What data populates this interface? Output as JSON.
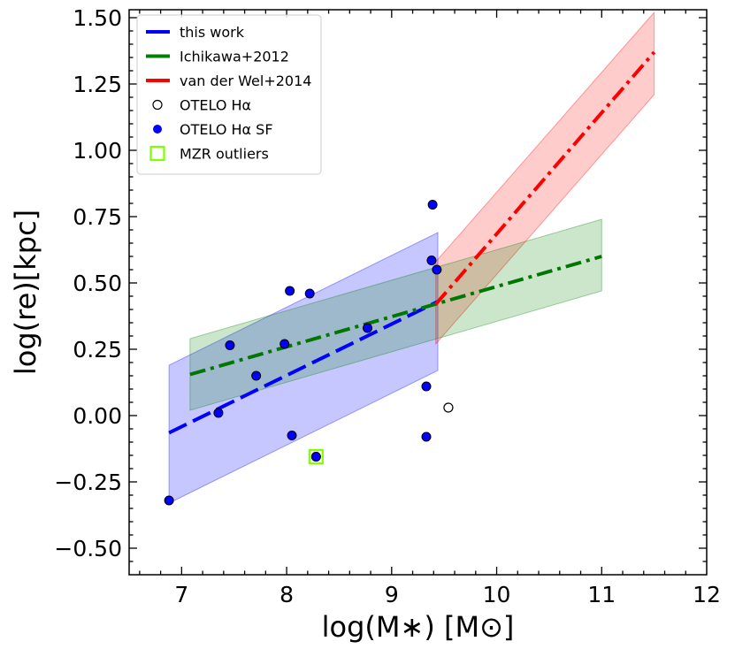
{
  "chart_data": {
    "type": "scatter",
    "title": "",
    "xlabel": "log(M∗) [M⊙]",
    "ylabel": "log(re)[kpc]",
    "xlim": [
      6.5,
      12
    ],
    "ylim": [
      -0.6,
      1.53
    ],
    "x_ticks": [
      7,
      8,
      9,
      10,
      11,
      12
    ],
    "x_tick_labels": [
      "7",
      "8",
      "9",
      "10",
      "11",
      "12"
    ],
    "y_ticks": [
      -0.5,
      -0.25,
      0,
      0.25,
      0.5,
      0.75,
      1.0,
      1.25,
      1.5
    ],
    "y_tick_labels": [
      "−0.50",
      "−0.25",
      "0.00",
      "0.25",
      "0.50",
      "0.75",
      "1.00",
      "1.25",
      "1.50"
    ],
    "grid": false,
    "legend_position": "top-left",
    "bands": [
      {
        "name": "this work band",
        "color": "#0000ff",
        "opacity": 0.22,
        "x": [
          6.88,
          9.44
        ],
        "lower": [
          -0.33,
          0.17
        ],
        "upper": [
          0.19,
          0.69
        ]
      },
      {
        "name": "van der Wel+2014 band",
        "color": "#ff0000",
        "opacity": 0.2,
        "x": [
          9.42,
          11.5
        ],
        "lower": [
          0.27,
          1.21
        ],
        "upper": [
          0.58,
          1.52
        ]
      },
      {
        "name": "Ichikawa+2012 band",
        "color": "#008000",
        "opacity": 0.2,
        "x": [
          7.08,
          11.0
        ],
        "lower": [
          0.02,
          0.47
        ],
        "upper": [
          0.29,
          0.74
        ]
      }
    ],
    "series": [
      {
        "name": "this work",
        "type": "line",
        "style": "longdash",
        "color": "#0000ff",
        "x": [
          6.88,
          9.44
        ],
        "y": [
          -0.065,
          0.43
        ]
      },
      {
        "name": "Ichikawa+2012",
        "type": "line",
        "style": "dashdot",
        "color": "#007700",
        "x": [
          7.08,
          11.0
        ],
        "y": [
          0.155,
          0.6
        ]
      },
      {
        "name": "van der Wel+2014",
        "type": "line",
        "style": "dashdot",
        "color": "#ff0000",
        "x": [
          9.42,
          11.5
        ],
        "y": [
          0.42,
          1.37
        ]
      },
      {
        "name": "OTELO Hα",
        "type": "scatter",
        "marker": "open-circle",
        "color": "#000000",
        "x": [
          9.54
        ],
        "y": [
          0.03
        ]
      },
      {
        "name": "OTELO Hα SF",
        "type": "scatter",
        "marker": "filled-circle",
        "color": "#0000ff",
        "x": [
          6.88,
          7.35,
          7.46,
          7.71,
          7.98,
          8.03,
          8.05,
          8.22,
          8.28,
          8.77,
          9.33,
          9.33,
          9.38,
          9.39,
          9.43
        ],
        "y": [
          -0.32,
          0.01,
          0.265,
          0.15,
          0.27,
          0.47,
          -0.075,
          0.46,
          -0.155,
          0.33,
          -0.08,
          0.11,
          0.585,
          0.795,
          0.55
        ]
      },
      {
        "name": "MZR outliers",
        "type": "scatter",
        "marker": "open-square",
        "color": "#7fff00",
        "x": [
          8.28
        ],
        "y": [
          -0.155
        ]
      }
    ],
    "legend": [
      {
        "label": "this work",
        "kind": "line",
        "color": "#0000ff"
      },
      {
        "label": "Ichikawa+2012",
        "kind": "line",
        "color": "#008000"
      },
      {
        "label": "van der Wel+2014",
        "kind": "line",
        "color": "#ff0000"
      },
      {
        "label": "OTELO Hα",
        "kind": "open-circle",
        "color": "#000000"
      },
      {
        "label": "OTELO Hα SF",
        "kind": "filled-circle",
        "color": "#0000ff"
      },
      {
        "label": "MZR outliers",
        "kind": "open-square",
        "color": "#7fff00"
      }
    ]
  }
}
